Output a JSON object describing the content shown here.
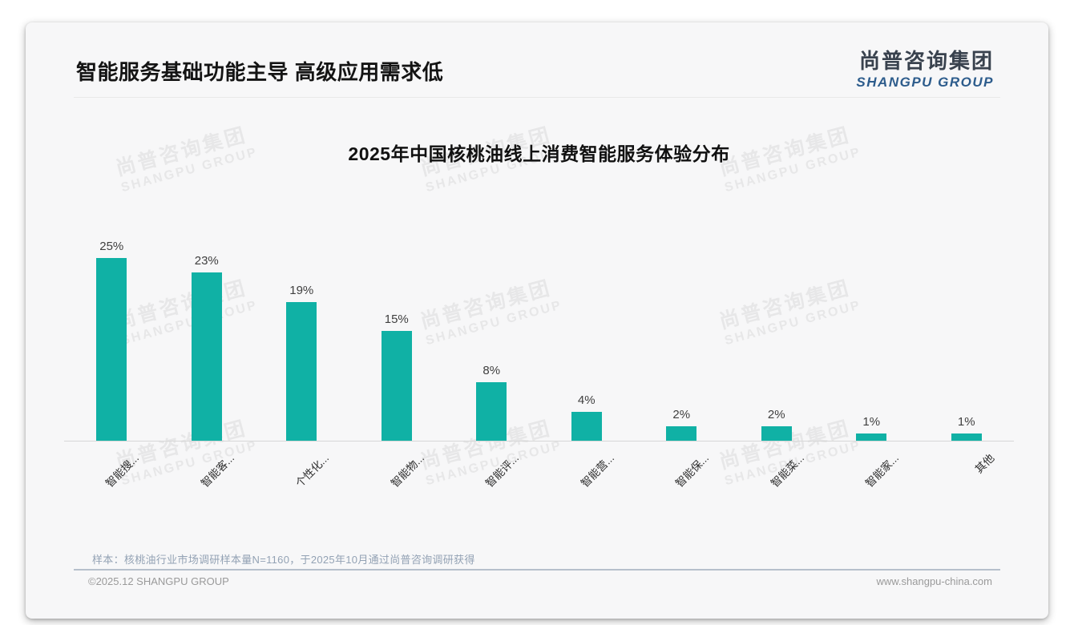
{
  "header": {
    "title": "智能服务基础功能主导 高级应用需求低",
    "logo_cn": "尚普咨询集团",
    "logo_en": "SHANGPU GROUP"
  },
  "watermark": {
    "line1": "尚普咨询集团",
    "line2": "SHANGPU GROUP"
  },
  "chart_data": {
    "type": "bar",
    "title": "2025年中国核桃油线上消费智能服务体验分布",
    "categories": [
      "智能搜...",
      "智能客...",
      "个性化...",
      "智能物...",
      "智能评...",
      "智能营...",
      "智能保...",
      "智能菜...",
      "智能家...",
      "其他"
    ],
    "values": [
      25,
      23,
      19,
      15,
      8,
      4,
      2,
      2,
      1,
      1
    ],
    "value_labels": [
      "25%",
      "23%",
      "19%",
      "15%",
      "8%",
      "4%",
      "2%",
      "2%",
      "1%",
      "1%"
    ],
    "unit": "%",
    "ylim": [
      0,
      25
    ],
    "bar_color": "#10b1a5",
    "xlabel": "",
    "ylabel": "",
    "legend": null,
    "grid": false,
    "x_tick_rotation": 45
  },
  "note": {
    "text": "样本：核桃油行业市场调研样本量N=1160，于2025年10月通过尚普咨询调研获得"
  },
  "footer": {
    "copyright": "©2025.12 SHANGPU GROUP",
    "website": "www.shangpu-china.com"
  }
}
